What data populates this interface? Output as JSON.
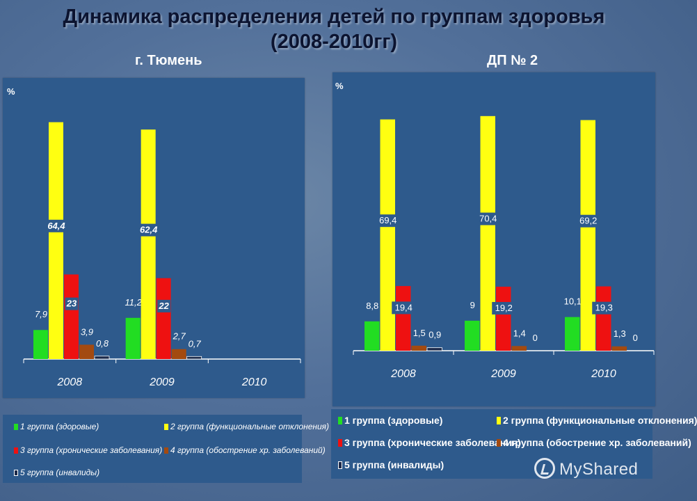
{
  "title_line1": "Динамика распределения детей по группам здоровья",
  "title_line2": "(2008-2010гг)",
  "chart_data": [
    {
      "type": "bar",
      "title": "г. Тюмень",
      "ylabel": "%",
      "categories": [
        "2008",
        "2009",
        "2010"
      ],
      "ylim": [
        0,
        70
      ],
      "series": [
        {
          "name": "1 группа (здоровые)",
          "color": "#22dd22",
          "values": [
            7.9,
            11.2,
            null
          ],
          "labels": [
            "7,9",
            "11,2",
            ""
          ]
        },
        {
          "name": "2 группа (функциональные отклонения)",
          "color": "#ffff11",
          "values": [
            64.4,
            62.4,
            null
          ],
          "labels": [
            "64,4",
            "62,4",
            ""
          ]
        },
        {
          "name": "3 группа (хронические заболевания)",
          "color": "#ee1111",
          "values": [
            23,
            22,
            null
          ],
          "labels": [
            "23",
            "22",
            ""
          ]
        },
        {
          "name": "4 группа (обострение хр. заболеваний)",
          "color": "#a34a10",
          "values": [
            3.9,
            2.7,
            null
          ],
          "labels": [
            "3,9",
            "2,7",
            ""
          ]
        },
        {
          "name": "5 группа (инвалиды)",
          "color": "#1c2a4a",
          "values": [
            0.8,
            0.7,
            null
          ],
          "labels": [
            "0,8",
            "0,7",
            ""
          ]
        }
      ]
    },
    {
      "type": "bar",
      "title": "ДП № 2",
      "ylabel": "%",
      "categories": [
        "2008",
        "2009",
        "2010"
      ],
      "ylim": [
        0,
        76
      ],
      "series": [
        {
          "name": "1 группа (здоровые)",
          "color": "#22dd22",
          "values": [
            8.8,
            9,
            10.1
          ],
          "labels": [
            "8,8",
            "9",
            "10,1"
          ]
        },
        {
          "name": "2 группа (функциональные отклонения)",
          "color": "#ffff11",
          "values": [
            69.4,
            70.4,
            69.2
          ],
          "labels": [
            "69,4",
            "70,4",
            "69,2"
          ]
        },
        {
          "name": "3 группа (хронические заболевания)",
          "color": "#ee1111",
          "values": [
            19.4,
            19.2,
            19.3
          ],
          "labels": [
            "19,4",
            "19,2",
            "19,3"
          ]
        },
        {
          "name": "4 группа (обострение хр. заболеваний)",
          "color": "#a34a10",
          "values": [
            1.5,
            1.4,
            1.3
          ],
          "labels": [
            "1,5",
            "1,4",
            "1,3"
          ]
        },
        {
          "name": "5 группа (инвалиды)",
          "color": "#1c2a4a",
          "values": [
            0.9,
            0,
            0
          ],
          "labels": [
            "0,9",
            "0",
            "0"
          ]
        }
      ]
    }
  ],
  "legend_left": [
    "1 группа (здоровые)",
    "2 группа (функциональные отклонения)",
    "3 группа (хронические заболевания)",
    "4 группа (обострение хр. заболеваний)",
    "5 группа (инвалиды)"
  ],
  "legend_right": [
    "1 группа (здоровые)",
    "2 группа (функциональные отклонения)",
    "3 группа (хронические заболевания)",
    "4 группа (обострение хр. заболеваний)",
    "5 группа (инвалиды)"
  ],
  "watermark": "MyShared"
}
